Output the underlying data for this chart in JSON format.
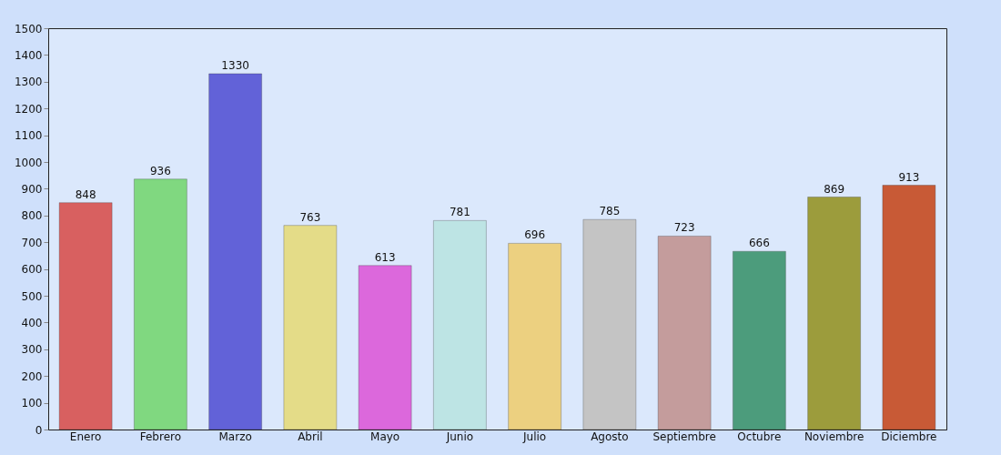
{
  "chart_data": {
    "type": "bar",
    "categories": [
      "Enero",
      "Febrero",
      "Marzo",
      "Abril",
      "Mayo",
      "Junio",
      "Julio",
      "Agosto",
      "Septiembre",
      "Octubre",
      "Noviembre",
      "Diciembre"
    ],
    "values": [
      848,
      936,
      1330,
      763,
      613,
      781,
      696,
      785,
      723,
      666,
      869,
      913
    ],
    "colors": [
      "#d86060",
      "#80d880",
      "#6262d8",
      "#e4dc88",
      "#dc68dc",
      "#bde4e4",
      "#ecd080",
      "#c4c4c4",
      "#c49c9c",
      "#4c9c7c",
      "#9c9c3c",
      "#c85a36"
    ],
    "ylim": [
      0,
      1500
    ],
    "yticks": [
      0,
      100,
      200,
      300,
      400,
      500,
      600,
      700,
      800,
      900,
      1000,
      1100,
      1200,
      1300,
      1400,
      1500
    ],
    "data_labels": true,
    "grid": false
  }
}
